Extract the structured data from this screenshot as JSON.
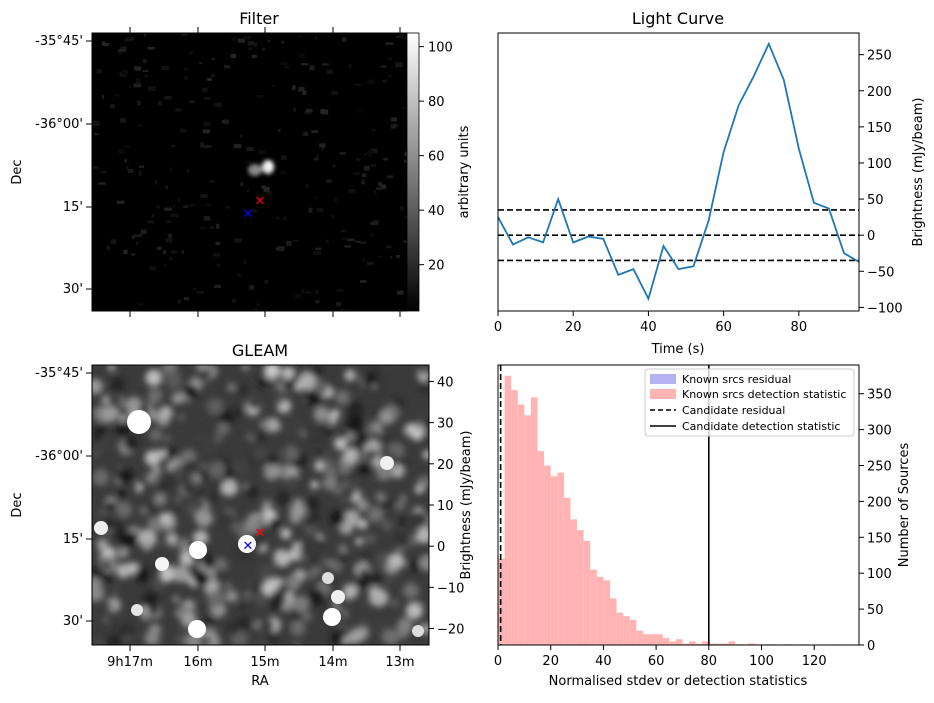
{
  "chart_data": [
    {
      "id": "filter",
      "type": "heatmap",
      "title": "Filter",
      "ylabel": "Dec",
      "yticks": [
        "-35°45'",
        "-36°00'",
        "15'",
        "30'"
      ],
      "colorbar": {
        "label": "arbitrary units",
        "ticks": [
          100,
          80,
          60,
          40,
          20
        ],
        "range": [
          3,
          105
        ]
      },
      "markers": [
        {
          "name": "Candidate position",
          "symbol": "x",
          "color": "#ff0000"
        },
        {
          "name": "Known source position",
          "symbol": "x",
          "color": "#0000ff"
        }
      ]
    },
    {
      "id": "lightcurve",
      "type": "line",
      "title": "Light Curve",
      "xlabel": "Time (s)",
      "ylabel": "Brightness (mJy/beam)",
      "xlim": [
        0,
        96
      ],
      "ylim": [
        -105,
        280
      ],
      "xticks": [
        0,
        20,
        40,
        60,
        80
      ],
      "yticks": [
        250,
        200,
        150,
        100,
        50,
        0,
        -50,
        -100
      ],
      "series": [
        {
          "name": "Light curve",
          "color": "#1f77b4",
          "x": [
            0,
            4,
            8,
            12,
            16,
            20,
            24,
            28,
            32,
            36,
            40,
            44,
            48,
            52,
            56,
            60,
            64,
            68,
            72,
            76,
            80,
            84,
            88,
            92,
            96
          ],
          "y": [
            25,
            -13,
            -3,
            -10,
            50,
            -10,
            -2,
            -5,
            -55,
            -47,
            -88,
            -15,
            -47,
            -43,
            20,
            115,
            180,
            220,
            265,
            215,
            120,
            45,
            37,
            -25,
            -37
          ]
        }
      ],
      "hlines": [
        {
          "y": 35,
          "style": "dashed",
          "color": "#000000"
        },
        {
          "y": 0,
          "style": "dashed",
          "color": "#000000"
        },
        {
          "y": -35,
          "style": "dashed",
          "color": "#000000"
        }
      ]
    },
    {
      "id": "gleam",
      "type": "heatmap",
      "title": "GLEAM",
      "xlabel": "RA",
      "ylabel": "Dec",
      "yticks": [
        "-35°45'",
        "-36°00'",
        "15'",
        "30'"
      ],
      "xticks": [
        "9h17m",
        "16m",
        "15m",
        "14m",
        "13m"
      ],
      "colorbar": {
        "label": "Brightness (mJy/beam)",
        "ticks": [
          40,
          30,
          20,
          10,
          0,
          -10,
          -20
        ],
        "range": [
          -24,
          44
        ]
      },
      "markers": [
        {
          "name": "Candidate position",
          "symbol": "x",
          "color": "#ff0000"
        },
        {
          "name": "Known source position",
          "symbol": "x",
          "color": "#0000ff"
        }
      ]
    },
    {
      "id": "histogram",
      "type": "bar",
      "xlabel": "Normalised stdev or detection statistics",
      "ylabel": "Number of Sources",
      "xlim": [
        0,
        137
      ],
      "ylim": [
        0,
        390
      ],
      "xticks": [
        0,
        20,
        40,
        60,
        80,
        100,
        120
      ],
      "yticks": [
        350,
        300,
        250,
        200,
        150,
        100,
        50,
        0
      ],
      "bin_width": 2.5,
      "series": [
        {
          "name": "Known srcs residual",
          "color": "#b3b3f2",
          "values": []
        },
        {
          "name": "Known srcs detection statistic",
          "color": "#ffb3b3",
          "bin_start": 0,
          "values": [
            120,
            375,
            355,
            335,
            320,
            345,
            270,
            250,
            235,
            240,
            205,
            175,
            160,
            145,
            105,
            95,
            90,
            65,
            45,
            40,
            35,
            20,
            15,
            15,
            15,
            10,
            5,
            8,
            2,
            5,
            2,
            5,
            2,
            2,
            2,
            5,
            1,
            1,
            2,
            1,
            1,
            1,
            0,
            1,
            1,
            0,
            1,
            0,
            0,
            0,
            0,
            1
          ]
        }
      ],
      "vlines": [
        {
          "name": "Candidate residual",
          "x": 1,
          "style": "dashed",
          "color": "#000000"
        },
        {
          "name": "Candidate detection statistic",
          "x": 80,
          "style": "solid",
          "color": "#000000"
        }
      ]
    }
  ]
}
